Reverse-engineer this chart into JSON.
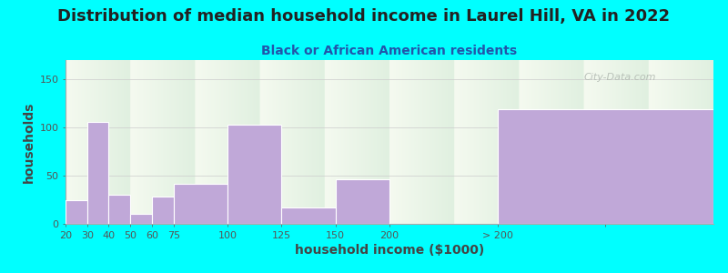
{
  "title": "Distribution of median household income in Laurel Hill, VA in 2022",
  "subtitle": "Black or African American residents",
  "xlabel": "household income ($1000)",
  "ylabel": "households",
  "background_color": "#00FFFF",
  "bar_color": "#c0a8d8",
  "bar_edge_color": "#c0a8d8",
  "categories": [
    "20",
    "30",
    "40",
    "50",
    "60",
    "75",
    "100",
    "125",
    "150",
    "200",
    "> 200"
  ],
  "values": [
    25,
    106,
    30,
    10,
    28,
    42,
    103,
    17,
    46,
    0,
    119
  ],
  "bar_lefts": [
    0,
    10,
    20,
    30,
    40,
    50,
    75,
    100,
    125,
    150,
    200
  ],
  "bar_widths": [
    10,
    10,
    10,
    10,
    10,
    25,
    25,
    25,
    25,
    50,
    100
  ],
  "xlim": [
    0,
    300
  ],
  "xtick_positions": [
    0,
    10,
    20,
    30,
    40,
    50,
    75,
    100,
    125,
    150,
    200,
    250
  ],
  "xtick_labels": [
    "20",
    "30",
    "40",
    "50",
    "60",
    "75",
    "100",
    "125",
    "150",
    "200",
    "> 200",
    ""
  ],
  "ylim": [
    0,
    170
  ],
  "yticks": [
    0,
    50,
    100,
    150
  ],
  "title_fontsize": 13,
  "subtitle_fontsize": 10,
  "axis_label_fontsize": 10,
  "tick_fontsize": 8,
  "watermark_text": "City-Data.com",
  "watermark_color": "#b0b8b0",
  "grad_top_color": "#f5faf0",
  "grad_bottom_color": "#e0f0e0"
}
